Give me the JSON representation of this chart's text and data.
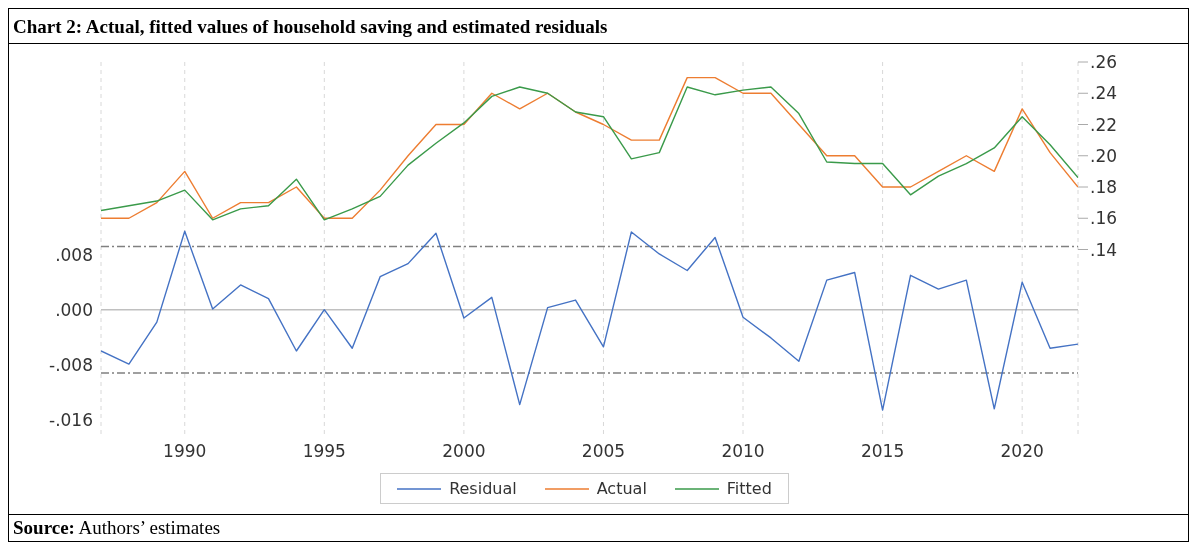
{
  "chart_data": {
    "type": "line",
    "title": "Chart 2: Actual, fitted values of household saving and estimated residuals",
    "x": [
      1987,
      1988,
      1989,
      1990,
      1991,
      1992,
      1993,
      1994,
      1995,
      1996,
      1997,
      1998,
      1999,
      2000,
      2001,
      2002,
      2003,
      2004,
      2005,
      2006,
      2007,
      2008,
      2009,
      2010,
      2011,
      2012,
      2013,
      2014,
      2015,
      2016,
      2017,
      2018,
      2019,
      2020,
      2021,
      2022
    ],
    "series": [
      {
        "name": "Residual",
        "color": "#4472c4",
        "axis": "y",
        "values": [
          -0.006,
          -0.0079,
          -0.0018,
          0.0114,
          0.0001,
          0.0036,
          0.0016,
          -0.006,
          0.0,
          -0.0056,
          0.0048,
          0.0067,
          0.0111,
          -0.0012,
          0.0018,
          -0.0138,
          0.0003,
          0.0014,
          -0.0054,
          0.0113,
          0.0081,
          0.0057,
          0.0105,
          -0.0011,
          -0.0041,
          -0.0075,
          0.0043,
          0.0054,
          -0.0146,
          0.005,
          0.003,
          0.0043,
          -0.0144,
          0.004,
          -0.0056,
          -0.005
        ]
      },
      {
        "name": "Actual",
        "color": "#ed7d31",
        "axis": "y2",
        "values": [
          0.16,
          0.16,
          0.17,
          0.19,
          0.16,
          0.17,
          0.17,
          0.18,
          0.16,
          0.16,
          0.178,
          0.2,
          0.22,
          0.22,
          0.24,
          0.23,
          0.24,
          0.228,
          0.22,
          0.21,
          0.21,
          0.25,
          0.25,
          0.24,
          0.24,
          0.22,
          0.2,
          0.2,
          0.18,
          0.18,
          0.19,
          0.2,
          0.19,
          0.23,
          0.202,
          0.18
        ]
      },
      {
        "name": "Fitted",
        "color": "#3a9a4a",
        "axis": "y2",
        "values": [
          0.165,
          0.168,
          0.171,
          0.178,
          0.159,
          0.166,
          0.168,
          0.185,
          0.159,
          0.166,
          0.174,
          0.194,
          0.208,
          0.221,
          0.238,
          0.244,
          0.24,
          0.228,
          0.225,
          0.198,
          0.202,
          0.244,
          0.239,
          0.242,
          0.244,
          0.227,
          0.196,
          0.195,
          0.195,
          0.175,
          0.187,
          0.195,
          0.205,
          0.225,
          0.207,
          0.186
        ]
      }
    ],
    "xlim": [
      1987,
      2022
    ],
    "xticks": [
      1990,
      1995,
      2000,
      2005,
      2010,
      2015,
      2020
    ],
    "ylim": [
      -0.0185,
      0.036
    ],
    "yticks": [
      {
        "value": -0.016,
        "label": "-.016"
      },
      {
        "value": -0.008,
        "label": "-.008"
      },
      {
        "value": 0,
        "label": ".000"
      },
      {
        "value": 0.008,
        "label": ".008"
      }
    ],
    "y2lim": [
      0.02,
      0.26
    ],
    "y2ticks": [
      {
        "value": 0.14,
        "label": ".14"
      },
      {
        "value": 0.16,
        "label": ".16"
      },
      {
        "value": 0.18,
        "label": ".18"
      },
      {
        "value": 0.2,
        "label": ".20"
      },
      {
        "value": 0.22,
        "label": ".22"
      },
      {
        "value": 0.24,
        "label": ".24"
      },
      {
        "value": 0.26,
        "label": ".26"
      }
    ],
    "ref_lines": [
      {
        "axis": "y",
        "value": 0,
        "color": "#c0c0c0",
        "line_style": "solid"
      },
      {
        "axis": "y",
        "value": 0.0092,
        "color": "#808080",
        "line_style": "dashdot"
      },
      {
        "axis": "y",
        "value": -0.0092,
        "color": "#808080",
        "line_style": "dashdot"
      }
    ],
    "grid": "x",
    "legend": "bottom",
    "marker": "none",
    "line_style": "solid",
    "annotations": [
      "Source: Authors’ estimates"
    ]
  }
}
